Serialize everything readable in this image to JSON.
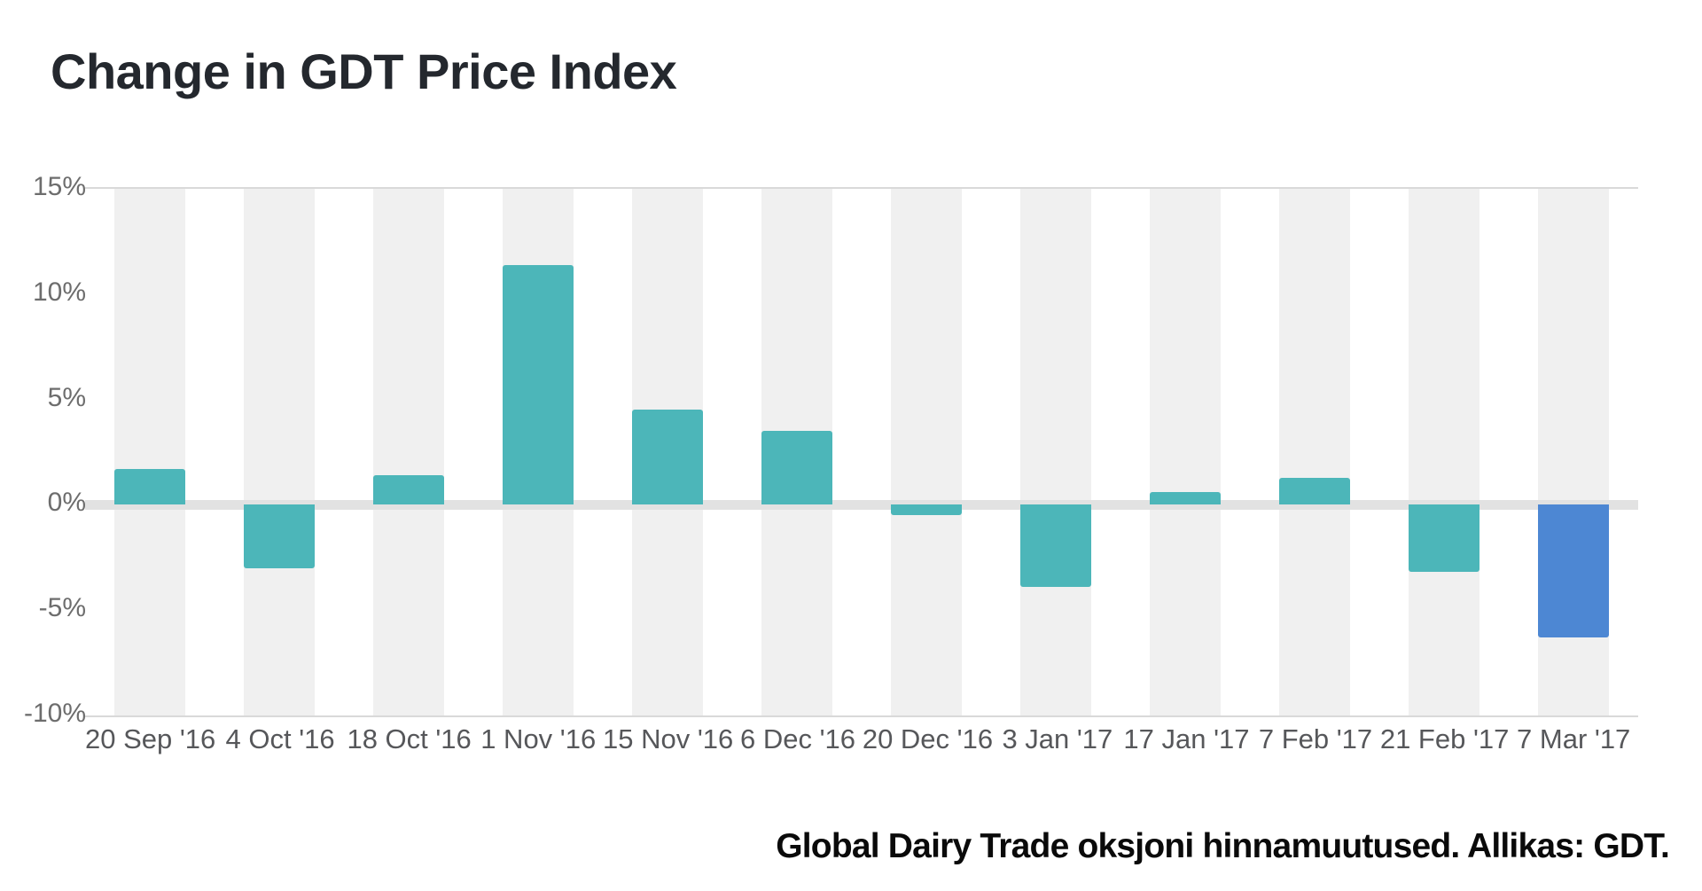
{
  "header": {
    "title": "Change in GDT Price Index"
  },
  "chart_data": {
    "type": "bar",
    "title": "Change in GDT Price Index",
    "categories": [
      "20 Sep '16",
      "4 Oct '16",
      "18 Oct '16",
      "1 Nov '16",
      "15 Nov '16",
      "6 Dec '16",
      "20 Dec '16",
      "3 Jan '17",
      "17 Jan '17",
      "7 Feb '17",
      "21 Feb '17",
      "7 Mar '17"
    ],
    "values": [
      1.7,
      -3.0,
      1.4,
      11.4,
      4.5,
      3.5,
      -0.5,
      -3.9,
      0.6,
      1.3,
      -3.2,
      -6.3
    ],
    "xlabel": "",
    "ylabel": "",
    "ylim": [
      -10,
      15
    ],
    "yticks": [
      {
        "label": "15%",
        "value": 15
      },
      {
        "label": "10%",
        "value": 10
      },
      {
        "label": "5%",
        "value": 5
      },
      {
        "label": "0%",
        "value": 0
      },
      {
        "label": "-5%",
        "value": -5
      },
      {
        "label": "-10%",
        "value": -10
      }
    ],
    "legend": "none",
    "grid": "top and bottom border lines only, thick light zero band",
    "colors": {
      "bar": "#4cb6b9",
      "highlight": "#4d87d3",
      "band": "#f0f0f0",
      "zero_line": "#e2e2e2",
      "border": "#d9d9d9"
    },
    "highlight_index": 11
  },
  "caption": {
    "text": "Global Dairy Trade oksjoni hinnamuutused. Allikas: GDT."
  }
}
